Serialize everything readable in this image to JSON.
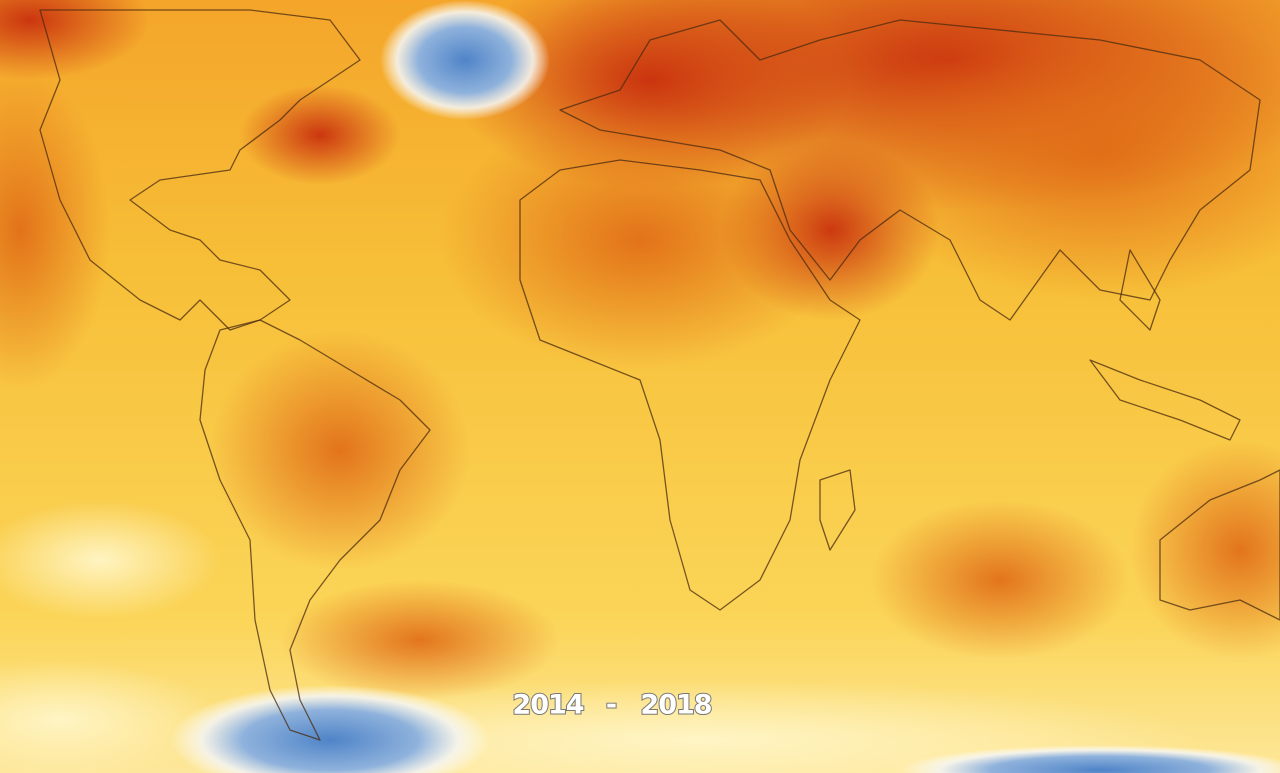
{
  "caption": {
    "start": "2014",
    "separator": "-",
    "end": "2018"
  }
}
